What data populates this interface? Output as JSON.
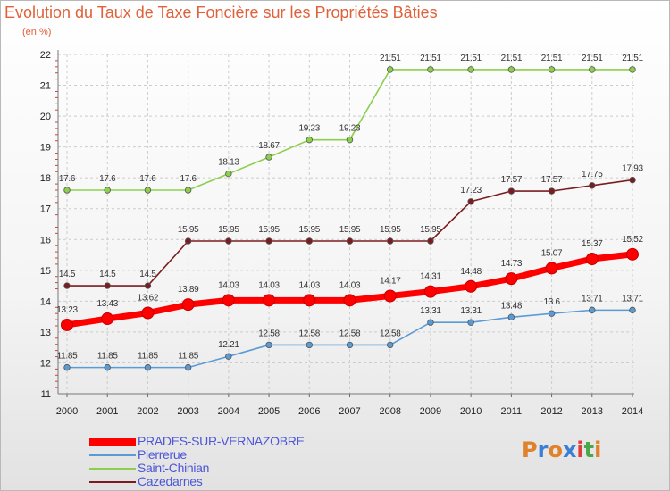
{
  "header": {
    "title": "Evolution du Taux de Taxe Foncière sur les Propriétés Bâties",
    "unit": "(en %)"
  },
  "logo": {
    "text": "Proxiti",
    "colors": [
      "#e0822c",
      "#3a7ed6",
      "#e0822c",
      "#3a7ed6",
      "#e03c3c",
      "#4aa84a",
      "#e0822c"
    ]
  },
  "chart_data": {
    "type": "line",
    "x": [
      "2000",
      "2001",
      "2002",
      "2003",
      "2004",
      "2005",
      "2006",
      "2007",
      "2008",
      "2009",
      "2010",
      "2011",
      "2012",
      "2013",
      "2014"
    ],
    "ylim": [
      11,
      22
    ],
    "yticks": [
      11,
      12,
      13,
      14,
      15,
      16,
      17,
      18,
      19,
      20,
      21,
      22
    ],
    "grid": "dashed",
    "legend_position": "bottom-left",
    "series": [
      {
        "name": "Saint-Chinian",
        "color": "#8ccf4d",
        "values": [
          17.6,
          17.6,
          17.6,
          17.6,
          18.13,
          18.67,
          19.23,
          19.23,
          21.51,
          21.51,
          21.51,
          21.51,
          21.51,
          21.51,
          21.51
        ],
        "labels": [
          "17.6",
          "17.6",
          "17.6",
          "17.6",
          "18.13",
          "18.67",
          "19.23",
          "19.23",
          "21.51",
          "21.51",
          "21.51",
          "21.51",
          "21.51",
          "21.51",
          "21.51"
        ]
      },
      {
        "name": "Cazedarnes",
        "color": "#7a1c20",
        "values": [
          14.5,
          14.5,
          14.5,
          15.95,
          15.95,
          15.95,
          15.95,
          15.95,
          15.95,
          15.95,
          17.23,
          17.57,
          17.57,
          17.75,
          17.93
        ],
        "labels": [
          "14.5",
          "14.5",
          "14.5",
          "15.95",
          "15.95",
          "15.95",
          "15.95",
          "15.95",
          "15.95",
          "15.95",
          "17.23",
          "17.57",
          "17.57",
          "17.75",
          "17.93"
        ]
      },
      {
        "name": "PRADES-SUR-VERNAZOBRE",
        "color": "#ff0000",
        "thick": true,
        "values": [
          13.23,
          13.43,
          13.62,
          13.89,
          14.03,
          14.03,
          14.03,
          14.03,
          14.17,
          14.31,
          14.48,
          14.73,
          15.07,
          15.37,
          15.52
        ],
        "labels": [
          "13.23",
          "13.43",
          "13.62",
          "13.89",
          "14.03",
          "14.03",
          "14.03",
          "14.03",
          "14.17",
          "14.31",
          "14.48",
          "14.73",
          "15.07",
          "15.37",
          "15.52"
        ]
      },
      {
        "name": "Pierrerue",
        "color": "#5b9bd5",
        "values": [
          11.85,
          11.85,
          11.85,
          11.85,
          12.21,
          12.58,
          12.58,
          12.58,
          12.58,
          13.31,
          13.31,
          13.48,
          13.6,
          13.71,
          13.71
        ],
        "labels": [
          "11.85",
          "11.85",
          "11.85",
          "11.85",
          "12.21",
          "12.58",
          "12.58",
          "12.58",
          "12.58",
          "13.31",
          "13.31",
          "13.48",
          "13.6",
          "13.71",
          "13.71"
        ]
      }
    ],
    "legend": [
      "PRADES-SUR-VERNAZOBRE",
      "Pierrerue",
      "Saint-Chinian",
      "Cazedarnes"
    ]
  }
}
